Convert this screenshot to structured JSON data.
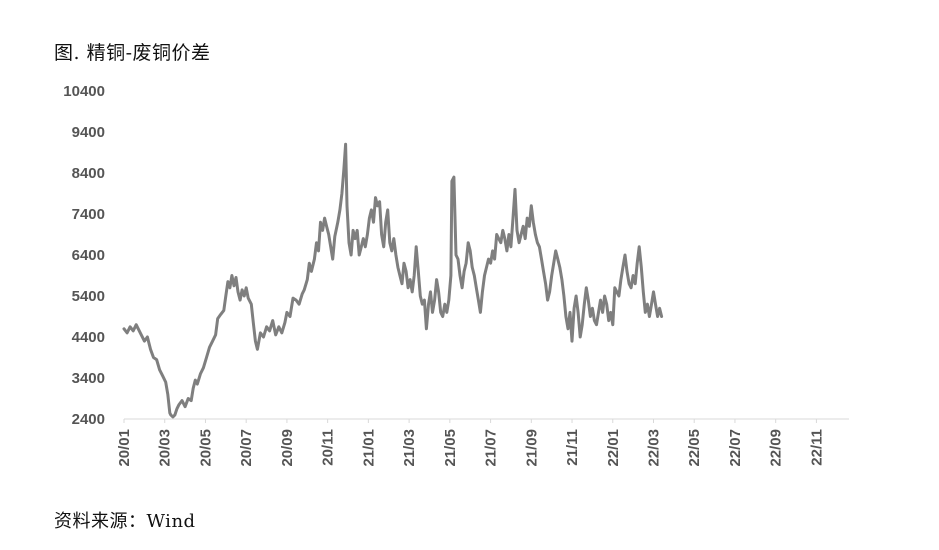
{
  "title": "图. 精铜-废铜价差",
  "source": "资料来源：Wind",
  "chart_data": {
    "type": "line",
    "title": "图. 精铜-废铜价差",
    "xlabel": "",
    "ylabel": "",
    "ylim": [
      2400,
      10400
    ],
    "yticks": [
      "10400",
      "9400",
      "8400",
      "7400",
      "6400",
      "5400",
      "4400",
      "3400",
      "2400"
    ],
    "xticks": [
      "20/01",
      "20/03",
      "20/05",
      "20/07",
      "20/09",
      "20/11",
      "21/01",
      "21/03",
      "21/05",
      "21/07",
      "21/09",
      "21/11",
      "22/01",
      "22/03",
      "22/05",
      "22/07",
      "22/09",
      "22/11"
    ],
    "grid": false,
    "legend": "none",
    "line_color": "#7f7f7f",
    "series": [
      {
        "values": [
          [
            0.0,
            4600
          ],
          [
            0.15,
            4500
          ],
          [
            0.3,
            4650
          ],
          [
            0.45,
            4550
          ],
          [
            0.6,
            4700
          ],
          [
            0.8,
            4500
          ],
          [
            1.0,
            4300
          ],
          [
            1.15,
            4400
          ],
          [
            1.3,
            4100
          ],
          [
            1.45,
            3900
          ],
          [
            1.6,
            3850
          ],
          [
            1.75,
            3600
          ],
          [
            1.9,
            3450
          ],
          [
            2.05,
            3300
          ],
          [
            2.15,
            3000
          ],
          [
            2.25,
            2550
          ],
          [
            2.3,
            2500
          ],
          [
            2.4,
            2450
          ],
          [
            2.5,
            2500
          ],
          [
            2.6,
            2650
          ],
          [
            2.7,
            2750
          ],
          [
            2.85,
            2850
          ],
          [
            3.0,
            2700
          ],
          [
            3.15,
            2900
          ],
          [
            3.3,
            2850
          ],
          [
            3.4,
            3150
          ],
          [
            3.5,
            3350
          ],
          [
            3.6,
            3250
          ],
          [
            3.75,
            3500
          ],
          [
            3.9,
            3650
          ],
          [
            4.05,
            3900
          ],
          [
            4.2,
            4150
          ],
          [
            4.35,
            4300
          ],
          [
            4.5,
            4450
          ],
          [
            4.6,
            4850
          ],
          [
            4.75,
            4950
          ],
          [
            4.9,
            5050
          ],
          [
            5.0,
            5400
          ],
          [
            5.1,
            5750
          ],
          [
            5.2,
            5600
          ],
          [
            5.3,
            5900
          ],
          [
            5.4,
            5650
          ],
          [
            5.5,
            5850
          ],
          [
            5.6,
            5500
          ],
          [
            5.7,
            5300
          ],
          [
            5.8,
            5550
          ],
          [
            5.9,
            5400
          ],
          [
            6.0,
            5600
          ],
          [
            6.1,
            5350
          ],
          [
            6.25,
            5200
          ],
          [
            6.35,
            4750
          ],
          [
            6.45,
            4300
          ],
          [
            6.55,
            4100
          ],
          [
            6.7,
            4500
          ],
          [
            6.85,
            4400
          ],
          [
            7.0,
            4650
          ],
          [
            7.15,
            4550
          ],
          [
            7.3,
            4800
          ],
          [
            7.45,
            4450
          ],
          [
            7.6,
            4650
          ],
          [
            7.75,
            4500
          ],
          [
            7.9,
            4750
          ],
          [
            8.0,
            5000
          ],
          [
            8.15,
            4900
          ],
          [
            8.3,
            5350
          ],
          [
            8.45,
            5300
          ],
          [
            8.6,
            5200
          ],
          [
            8.75,
            5450
          ],
          [
            8.85,
            5550
          ],
          [
            9.0,
            5800
          ],
          [
            9.1,
            6200
          ],
          [
            9.2,
            6000
          ],
          [
            9.35,
            6300
          ],
          [
            9.45,
            6700
          ],
          [
            9.55,
            6500
          ],
          [
            9.65,
            7200
          ],
          [
            9.75,
            7000
          ],
          [
            9.85,
            7300
          ],
          [
            9.95,
            7100
          ],
          [
            10.05,
            6900
          ],
          [
            10.15,
            6600
          ],
          [
            10.25,
            6300
          ],
          [
            10.35,
            6850
          ],
          [
            10.5,
            7200
          ],
          [
            10.6,
            7500
          ],
          [
            10.7,
            7900
          ],
          [
            10.8,
            8500
          ],
          [
            10.88,
            9100
          ],
          [
            10.95,
            7600
          ],
          [
            11.05,
            6700
          ],
          [
            11.15,
            6400
          ],
          [
            11.25,
            7000
          ],
          [
            11.35,
            6800
          ],
          [
            11.45,
            7000
          ],
          [
            11.55,
            6400
          ],
          [
            11.65,
            6600
          ],
          [
            11.75,
            6800
          ],
          [
            11.85,
            6600
          ],
          [
            11.95,
            6900
          ],
          [
            12.05,
            7300
          ],
          [
            12.15,
            7500
          ],
          [
            12.25,
            7200
          ],
          [
            12.35,
            7800
          ],
          [
            12.45,
            7600
          ],
          [
            12.55,
            7700
          ],
          [
            12.65,
            6900
          ],
          [
            12.75,
            6600
          ],
          [
            12.85,
            7200
          ],
          [
            12.95,
            7500
          ],
          [
            13.05,
            6700
          ],
          [
            13.15,
            6500
          ],
          [
            13.25,
            6800
          ],
          [
            13.35,
            6400
          ],
          [
            13.45,
            6100
          ],
          [
            13.55,
            5900
          ],
          [
            13.65,
            5700
          ],
          [
            13.75,
            6200
          ],
          [
            13.85,
            6000
          ],
          [
            13.95,
            5600
          ],
          [
            14.05,
            5800
          ],
          [
            14.15,
            5500
          ],
          [
            14.25,
            5900
          ],
          [
            14.35,
            6600
          ],
          [
            14.45,
            6000
          ],
          [
            14.55,
            5400
          ],
          [
            14.65,
            5200
          ],
          [
            14.75,
            5300
          ],
          [
            14.85,
            4600
          ],
          [
            14.95,
            5200
          ],
          [
            15.05,
            5500
          ],
          [
            15.15,
            5000
          ],
          [
            15.25,
            5300
          ],
          [
            15.35,
            5800
          ],
          [
            15.45,
            5500
          ],
          [
            15.55,
            5000
          ],
          [
            15.65,
            4900
          ],
          [
            15.75,
            5200
          ],
          [
            15.85,
            5000
          ],
          [
            15.95,
            5300
          ],
          [
            16.05,
            5900
          ],
          [
            16.1,
            8200
          ],
          [
            16.2,
            8300
          ],
          [
            16.3,
            6400
          ],
          [
            16.4,
            6300
          ],
          [
            16.5,
            5900
          ],
          [
            16.6,
            5600
          ],
          [
            16.7,
            6000
          ],
          [
            16.8,
            6200
          ],
          [
            16.9,
            6700
          ],
          [
            17.0,
            6500
          ],
          [
            17.1,
            6100
          ],
          [
            17.2,
            5900
          ],
          [
            17.3,
            5600
          ],
          [
            17.4,
            5300
          ],
          [
            17.5,
            5000
          ],
          [
            17.6,
            5500
          ],
          [
            17.7,
            5900
          ],
          [
            17.8,
            6100
          ],
          [
            17.9,
            6300
          ],
          [
            18.0,
            6200
          ],
          [
            18.1,
            6500
          ],
          [
            18.2,
            6300
          ],
          [
            18.3,
            6900
          ],
          [
            18.4,
            6800
          ],
          [
            18.5,
            6700
          ],
          [
            18.6,
            7000
          ],
          [
            18.7,
            6800
          ],
          [
            18.8,
            6500
          ],
          [
            18.9,
            6900
          ],
          [
            19.0,
            6600
          ],
          [
            19.1,
            7300
          ],
          [
            19.2,
            8000
          ],
          [
            19.3,
            7000
          ],
          [
            19.4,
            6700
          ],
          [
            19.5,
            6900
          ],
          [
            19.6,
            7100
          ],
          [
            19.7,
            6800
          ],
          [
            19.8,
            7300
          ],
          [
            19.9,
            7100
          ],
          [
            20.0,
            7600
          ],
          [
            20.1,
            7200
          ],
          [
            20.2,
            6900
          ],
          [
            20.3,
            6700
          ],
          [
            20.4,
            6600
          ],
          [
            20.5,
            6300
          ],
          [
            20.6,
            6000
          ],
          [
            20.7,
            5700
          ],
          [
            20.8,
            5300
          ],
          [
            20.9,
            5500
          ],
          [
            21.0,
            5900
          ],
          [
            21.1,
            6200
          ],
          [
            21.2,
            6500
          ],
          [
            21.3,
            6300
          ],
          [
            21.4,
            6100
          ],
          [
            21.5,
            5800
          ],
          [
            21.6,
            5400
          ],
          [
            21.7,
            4900
          ],
          [
            21.8,
            4600
          ],
          [
            21.9,
            5000
          ],
          [
            22.0,
            4300
          ],
          [
            22.1,
            5100
          ],
          [
            22.2,
            5400
          ],
          [
            22.3,
            5000
          ],
          [
            22.4,
            4400
          ],
          [
            22.5,
            4700
          ],
          [
            22.6,
            5200
          ],
          [
            22.7,
            5600
          ],
          [
            22.8,
            5300
          ],
          [
            22.9,
            4900
          ],
          [
            23.0,
            5100
          ],
          [
            23.1,
            4800
          ],
          [
            23.2,
            4700
          ],
          [
            23.3,
            5000
          ],
          [
            23.4,
            5300
          ],
          [
            23.5,
            5000
          ],
          [
            23.6,
            5400
          ],
          [
            23.7,
            5200
          ],
          [
            23.8,
            4800
          ],
          [
            23.9,
            5000
          ],
          [
            24.0,
            4700
          ],
          [
            24.1,
            5600
          ],
          [
            24.2,
            5500
          ],
          [
            24.3,
            5400
          ],
          [
            24.4,
            5800
          ],
          [
            24.5,
            6100
          ],
          [
            24.6,
            6400
          ],
          [
            24.7,
            6000
          ],
          [
            24.8,
            5700
          ],
          [
            24.9,
            5600
          ],
          [
            25.0,
            5900
          ],
          [
            25.1,
            5700
          ],
          [
            25.2,
            6200
          ],
          [
            25.3,
            6600
          ],
          [
            25.4,
            6100
          ],
          [
            25.5,
            5500
          ],
          [
            25.6,
            5000
          ],
          [
            25.7,
            5200
          ],
          [
            25.8,
            4900
          ],
          [
            25.9,
            5200
          ],
          [
            26.0,
            5500
          ],
          [
            26.1,
            5200
          ],
          [
            26.2,
            4900
          ],
          [
            26.3,
            5100
          ],
          [
            26.4,
            4900
          ]
        ]
      }
    ]
  }
}
